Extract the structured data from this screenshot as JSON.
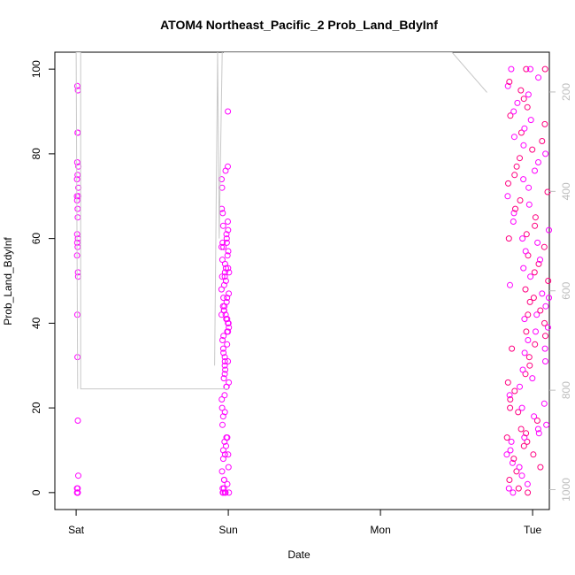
{
  "chart_data": {
    "type": "scatter",
    "title": "ATOM4 Northeast_Pacific_2 Prob_Land_BdyInf",
    "xlabel": "Date",
    "ylabel": "Prob_Land_BdyInf",
    "x_ticks": [
      "Sat",
      "Sun",
      "Mon",
      "Tue"
    ],
    "x_range_days": [
      -0.14,
      3.11
    ],
    "ylim": [
      -4,
      104
    ],
    "y_ticks": [
      0,
      20,
      40,
      60,
      80,
      100
    ],
    "secondary_axis": {
      "ticks": [
        200,
        400,
        600,
        800,
        1000
      ],
      "range": [
        1040,
        120
      ],
      "color": "#bdbdbd"
    },
    "grid": false,
    "colors": {
      "points": [
        "#ff00ff",
        "#ff0080"
      ],
      "line": "#c8c8c8"
    },
    "series": [
      {
        "role": "points",
        "clusters": [
          {
            "day": 0.01,
            "values": [
              0,
              0,
              0,
              0,
              0,
              1,
              1,
              4,
              17,
              32,
              42,
              51,
              52,
              56,
              58,
              59,
              60,
              61,
              65,
              67,
              69,
              70,
              70,
              72,
              74,
              75,
              77,
              78,
              85,
              85,
              95,
              96
            ]
          },
          {
            "day": 0.98,
            "values": [
              0,
              0,
              0,
              0,
              0,
              1,
              1,
              2,
              3,
              3,
              5,
              6,
              8,
              9,
              9,
              10,
              11,
              12,
              13,
              13,
              16,
              18,
              19,
              20,
              22,
              23,
              25,
              25,
              26,
              27,
              28,
              29,
              30,
              31,
              31,
              32,
              33,
              34,
              35,
              36,
              37,
              38,
              38,
              39,
              40,
              40,
              41,
              41,
              42,
              42,
              43,
              43,
              44,
              44,
              45,
              46,
              46,
              47,
              48,
              49,
              50,
              51,
              51,
              52,
              52,
              53,
              53,
              54,
              55,
              56,
              57,
              58,
              58,
              59,
              59,
              60,
              61,
              62,
              63,
              64,
              66,
              67,
              72,
              74,
              76,
              77,
              90
            ]
          },
          {
            "day": 2.97,
            "values": [
              0,
              0,
              1,
              1,
              2,
              3,
              4,
              5,
              6,
              6,
              7,
              8,
              9,
              9,
              10,
              11,
              12,
              12,
              13,
              13,
              14,
              14,
              15,
              15,
              16,
              17,
              18,
              19,
              20,
              20,
              21,
              22,
              23,
              24,
              25,
              26,
              27,
              28,
              29,
              30,
              31,
              32,
              33,
              34,
              34,
              35,
              36,
              37,
              38,
              38,
              39,
              40,
              41,
              42,
              42,
              43,
              44,
              45,
              46,
              46,
              47,
              48,
              49,
              50,
              51,
              52,
              53,
              54,
              55,
              56,
              57,
              58,
              59,
              60,
              60,
              61,
              62,
              63,
              64,
              65,
              66,
              67,
              68,
              69,
              70,
              71,
              72,
              73,
              74,
              75,
              76,
              77,
              78,
              79,
              80,
              81,
              82,
              83,
              84,
              85,
              86,
              87,
              88,
              89,
              90,
              91,
              92,
              93,
              94,
              95,
              96,
              97,
              98,
              100,
              100,
              100,
              100
            ]
          }
        ]
      },
      {
        "role": "line",
        "segments": [
          {
            "x": [
              0.01,
              0.0,
              0.03,
              0.03,
              0.93,
              1.0
            ],
            "y": [
              24.5,
              104,
              104,
              24.5,
              24.5,
              24.5
            ]
          },
          {
            "x": [
              0.91,
              0.93,
              0.94,
              0.96
            ],
            "y": [
              30,
              104,
              60,
              104
            ]
          },
          {
            "x": [
              0.97,
              1.5,
              2.47,
              2.7
            ],
            "y": [
              104,
              104,
              104,
              94.5
            ]
          }
        ]
      }
    ]
  }
}
